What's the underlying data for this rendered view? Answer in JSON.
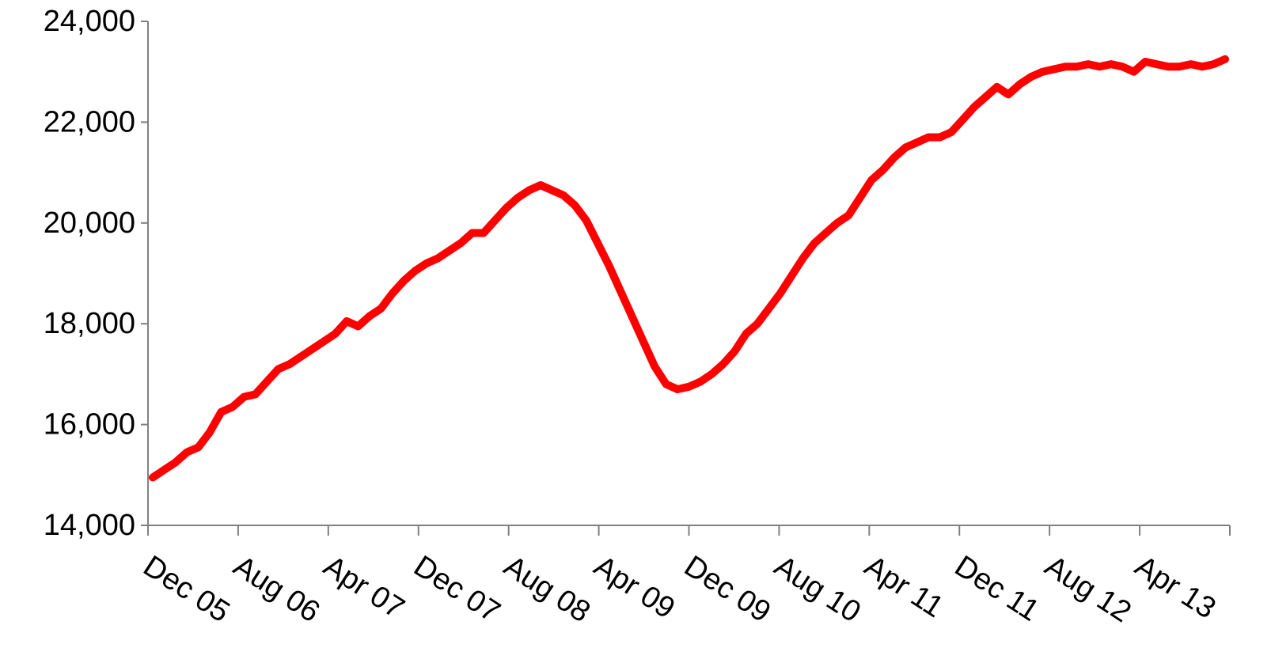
{
  "chart_data": {
    "type": "line",
    "title": "",
    "xlabel": "",
    "ylabel": "",
    "ylim": [
      14000,
      24000
    ],
    "yticks": [
      14000,
      16000,
      18000,
      20000,
      22000,
      24000
    ],
    "ytick_labels": [
      "14,000",
      "16,000",
      "18,000",
      "20,000",
      "22,000",
      "24,000"
    ],
    "xtick_labels": [
      "Dec 05",
      "Aug 06",
      "Apr 07",
      "Dec 07",
      "Aug 08",
      "Apr 09",
      "Dec 09",
      "Aug 10",
      "Apr 11",
      "Dec 11",
      "Aug 12",
      "Apr 13"
    ],
    "grid": false,
    "legend": "none",
    "x_start": "Dec 05",
    "x_interval": "month",
    "series": [
      {
        "color": "#ff0000",
        "values": [
          14950,
          15100,
          15250,
          15450,
          15550,
          15850,
          16250,
          16350,
          16550,
          16600,
          16850,
          17100,
          17200,
          17350,
          17500,
          17650,
          17800,
          18050,
          17950,
          18150,
          18300,
          18600,
          18850,
          19050,
          19200,
          19300,
          19450,
          19600,
          19800,
          19800,
          20050,
          20300,
          20500,
          20650,
          20750,
          20650,
          20550,
          20350,
          20050,
          19600,
          19150,
          18650,
          18150,
          17650,
          17150,
          16800,
          16700,
          16750,
          16850,
          17000,
          17200,
          17450,
          17800,
          18000,
          18300,
          18600,
          18950,
          19300,
          19600,
          19800,
          20000,
          20150,
          20500,
          20850,
          21050,
          21300,
          21500,
          21600,
          21700,
          21700,
          21800,
          22050,
          22300,
          22500,
          22700,
          22550,
          22750,
          22900,
          23000,
          23050,
          23100,
          23100,
          23150,
          23100,
          23150,
          23100,
          23000,
          23200,
          23150,
          23100,
          23100,
          23150,
          23100,
          23150,
          23250
        ]
      }
    ]
  }
}
